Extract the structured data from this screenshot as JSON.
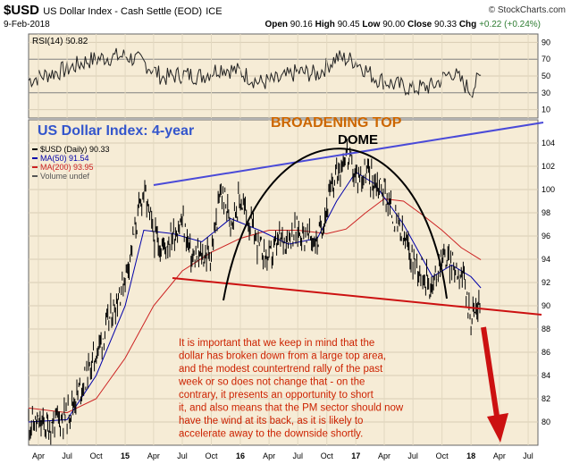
{
  "header": {
    "symbol": "$USD",
    "description": "US Dollar Index - Cash Settle (EOD)",
    "exchange": "ICE",
    "brand": "© StockCharts.com",
    "date": "9-Feb-2018",
    "open_label": "Open",
    "open": "90.16",
    "high_label": "High",
    "high": "90.45",
    "low_label": "Low",
    "low": "90.00",
    "close_label": "Close",
    "close": "90.33",
    "chg_label": "Chg",
    "chg": "+0.22 (+0.24%)",
    "chg_color": "#2e7d32",
    "chg_icon": "triangle-up-icon"
  },
  "colors": {
    "panel_bg": "#f6ecd6",
    "rsi_color": "#222222",
    "ma50_color": "#0000aa",
    "ma200_color": "#cc2222",
    "price_color": "#000000",
    "blue_line": "#4a4ad8",
    "red_line": "#cc1111",
    "brand_orange": "#cc6600",
    "title_blue": "#3355cc",
    "note_red": "#cc2200"
  },
  "chart_data": [
    {
      "type": "line",
      "panel": "RSI",
      "title": "RSI(14) 50.82",
      "y_ticks": [
        90,
        70,
        50,
        30,
        10
      ],
      "ylim": [
        0,
        100
      ],
      "reference_lines": [
        70,
        30
      ],
      "x": [
        "2014-03",
        "2014-05",
        "2014-07",
        "2014-09",
        "2014-11",
        "2015-01",
        "2015-03",
        "2015-05",
        "2015-07",
        "2015-09",
        "2015-11",
        "2016-01",
        "2016-03",
        "2016-05",
        "2016-07",
        "2016-09",
        "2016-11",
        "2017-01",
        "2017-03",
        "2017-05",
        "2017-07",
        "2017-09",
        "2017-11",
        "2018-01",
        "2018-02"
      ],
      "values": [
        45,
        52,
        58,
        68,
        72,
        74,
        66,
        48,
        52,
        50,
        60,
        55,
        42,
        45,
        55,
        52,
        72,
        68,
        48,
        40,
        35,
        38,
        55,
        32,
        51
      ]
    },
    {
      "type": "line",
      "panel": "price",
      "title": "$USD (Daily) 90.33",
      "ylim": [
        78,
        106
      ],
      "y_ticks": [
        104,
        102,
        100,
        98,
        96,
        94,
        92,
        90,
        88,
        86,
        84,
        82,
        80
      ],
      "x_ticks": [
        "Apr",
        "Jul",
        "Oct",
        "15",
        "Apr",
        "Jul",
        "Oct",
        "16",
        "Apr",
        "Jul",
        "Oct",
        "17",
        "Apr",
        "Jul",
        "Oct",
        "18",
        "Apr",
        "Jul"
      ],
      "legend": [
        "$USD (Daily) 90.33",
        "MA(50) 91.54",
        "MA(200) 93.95",
        "Volume undef"
      ],
      "series": [
        {
          "name": "$USD (Daily)",
          "x": [
            "2014-03",
            "2014-05",
            "2014-07",
            "2014-09",
            "2014-11",
            "2015-01",
            "2015-03",
            "2015-04",
            "2015-05",
            "2015-07",
            "2015-08",
            "2015-10",
            "2015-11",
            "2015-12",
            "2016-01",
            "2016-03",
            "2016-04",
            "2016-05",
            "2016-07",
            "2016-09",
            "2016-10",
            "2016-11",
            "2016-12",
            "2017-01",
            "2017-02",
            "2017-04",
            "2017-05",
            "2017-07",
            "2017-08",
            "2017-09",
            "2017-10",
            "2017-11",
            "2017-12",
            "2018-01",
            "2018-02"
          ],
          "values": [
            80.0,
            79.6,
            80.6,
            84.0,
            88.0,
            92.5,
            100.0,
            96.0,
            95.0,
            97.3,
            94.0,
            94.5,
            99.8,
            97.5,
            99.2,
            95.0,
            94.0,
            95.5,
            96.5,
            95.5,
            98.5,
            101.5,
            103.2,
            101.0,
            101.5,
            100.0,
            97.5,
            94.0,
            93.0,
            91.5,
            94.5,
            93.5,
            93.0,
            89.0,
            90.33
          ]
        },
        {
          "name": "MA(50)",
          "x": [
            "2014-03",
            "2014-07",
            "2014-10",
            "2015-01",
            "2015-03",
            "2015-06",
            "2015-09",
            "2015-12",
            "2016-03",
            "2016-06",
            "2016-09",
            "2016-11",
            "2017-01",
            "2017-03",
            "2017-06",
            "2017-09",
            "2017-11",
            "2018-01",
            "2018-02"
          ],
          "values": [
            80.0,
            80.2,
            84.0,
            90.0,
            96.5,
            96.2,
            95.5,
            97.5,
            96.5,
            95.3,
            95.8,
            99.0,
            101.5,
            100.5,
            97.0,
            92.5,
            93.5,
            92.5,
            91.54
          ]
        },
        {
          "name": "MA(200)",
          "x": [
            "2014-03",
            "2014-07",
            "2014-10",
            "2015-01",
            "2015-04",
            "2015-07",
            "2015-10",
            "2016-01",
            "2016-04",
            "2016-07",
            "2016-10",
            "2016-12",
            "2017-02",
            "2017-04",
            "2017-06",
            "2017-08",
            "2017-10",
            "2017-12",
            "2018-02"
          ],
          "values": [
            81.2,
            80.8,
            82.0,
            85.5,
            90.0,
            93.0,
            94.6,
            95.8,
            96.5,
            96.5,
            96.2,
            96.6,
            98.0,
            99.2,
            99.0,
            97.8,
            96.5,
            95.0,
            93.95
          ]
        }
      ],
      "annotations": {
        "title": "US Dollar Index: 4-year",
        "pattern_label": "BROADENING TOP",
        "dome_label": "DOME",
        "note": "It is important that we keep in mind that the dollar has broken down from a large top area, and the modest countertrend rally of the past week or so does not change that - on the contrary, it presents an opportunity to short it, and also means that the PM sector should now have the wind at its back, as it is likely to accelerate away to the downside shortly."
      }
    }
  ]
}
